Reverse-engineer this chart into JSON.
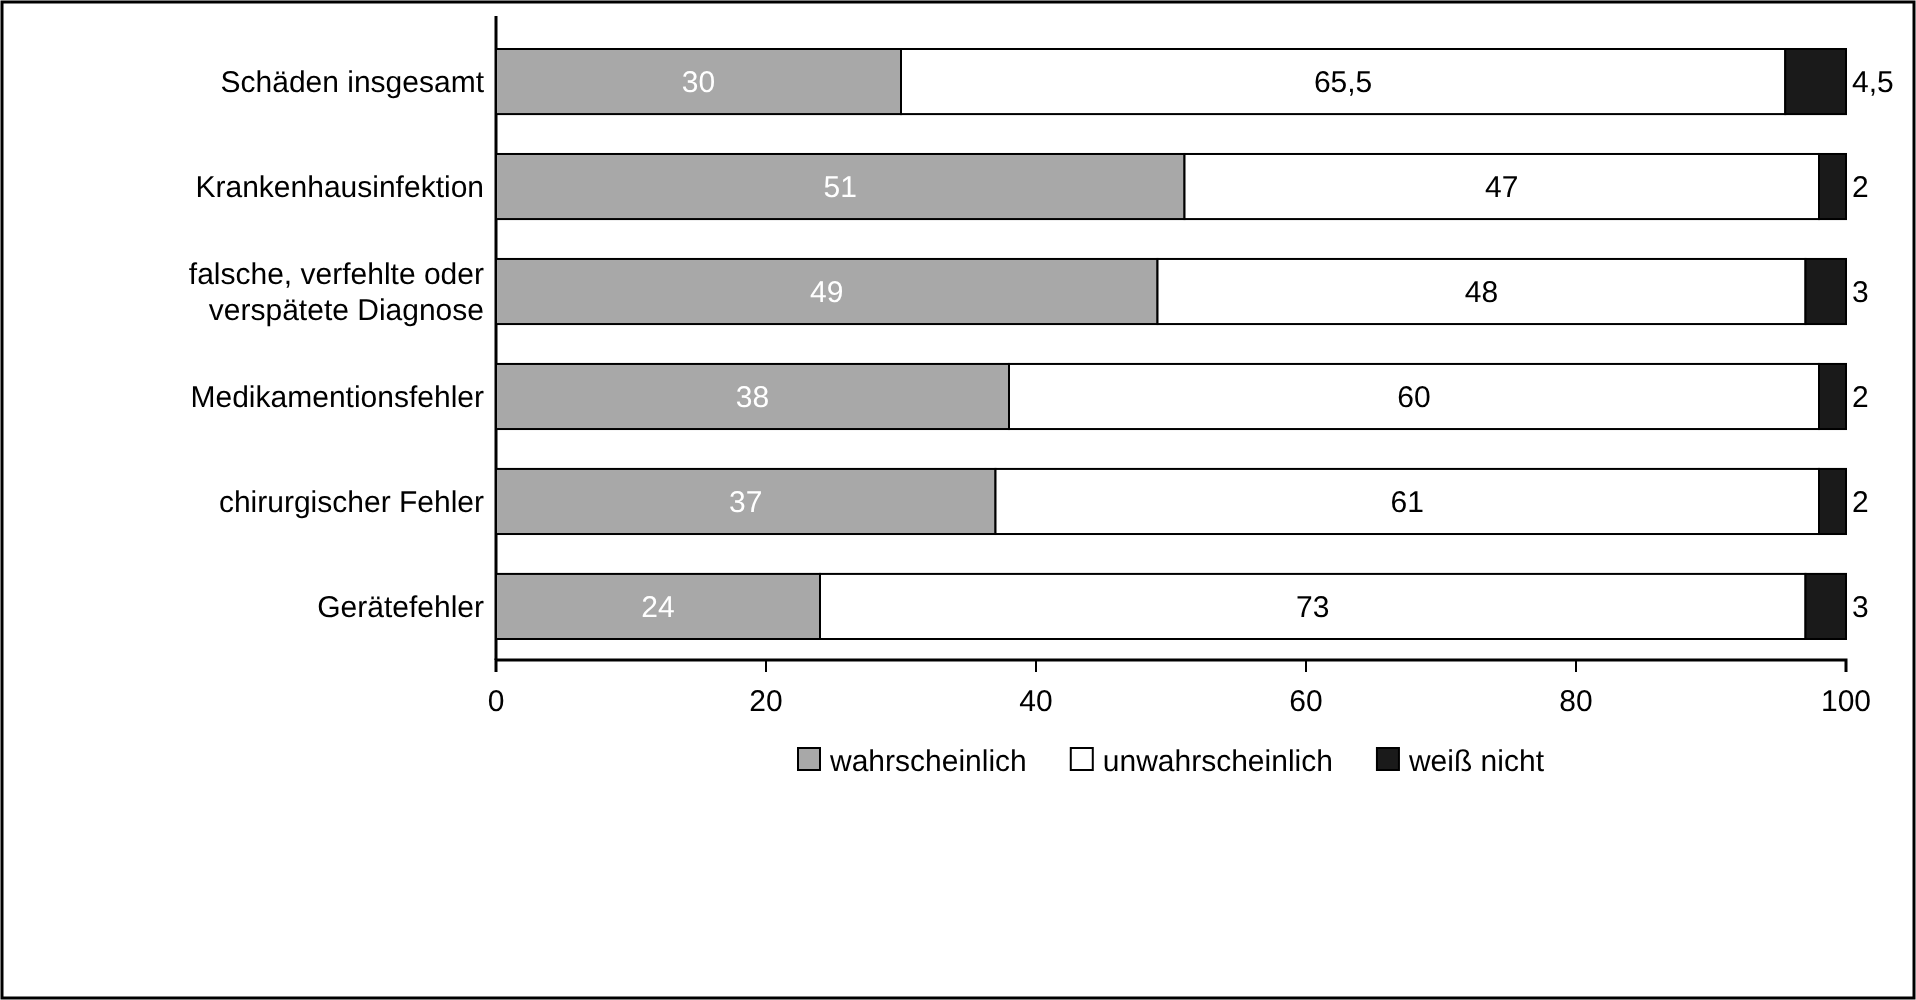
{
  "chart_data": {
    "type": "bar",
    "orientation": "horizontal",
    "stacked": true,
    "categories": [
      "Schäden insgesamt",
      "Krankenhausinfektion",
      "falsche, verfehlte oder verspätete Diagnose",
      "Medikamentionsfehler",
      "chirurgischer Fehler",
      "Gerätefehler"
    ],
    "series": [
      {
        "name": "wahrscheinlich",
        "color": "#a8a8a8",
        "values": [
          30,
          51,
          49,
          38,
          37,
          24
        ],
        "value_labels": [
          "30",
          "51",
          "49",
          "38",
          "37",
          "24"
        ]
      },
      {
        "name": "unwahrscheinlich",
        "color": "#ffffff",
        "values": [
          65.5,
          47,
          48,
          60,
          61,
          73
        ],
        "value_labels": [
          "65,5",
          "47",
          "48",
          "60",
          "61",
          "73"
        ]
      },
      {
        "name": "weiß nicht",
        "color": "#1a1a1a",
        "values": [
          4.5,
          2,
          3,
          2,
          2,
          3
        ],
        "value_labels": [
          "4,5",
          "2",
          "3",
          "2",
          "2",
          "3"
        ]
      }
    ],
    "xlim": [
      0,
      100
    ],
    "xticks": [
      0,
      20,
      40,
      60,
      80,
      100
    ],
    "grid": false,
    "legend": "bottom"
  }
}
